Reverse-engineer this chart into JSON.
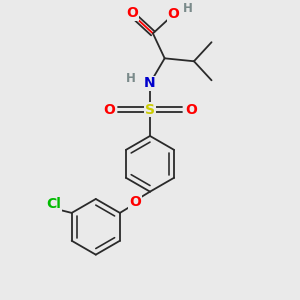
{
  "bg_color": "#eaeaea",
  "bond_color": "#2a2a2a",
  "bond_width": 1.3,
  "atom_colors": {
    "O": "#ff0000",
    "N": "#0000cc",
    "S": "#cccc00",
    "Cl": "#00bb00",
    "H": "#7a8a8a",
    "C": "#2a2a2a"
  },
  "font_size": 10,
  "small_font": 8.5
}
